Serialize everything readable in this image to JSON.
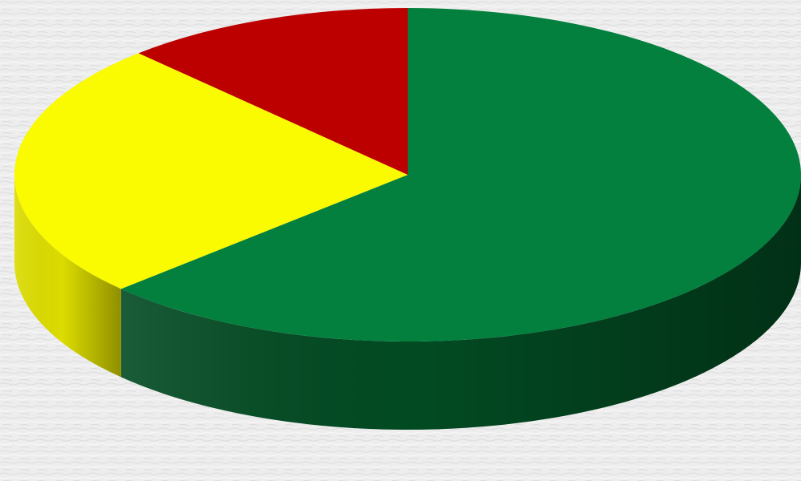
{
  "chart_data": {
    "type": "pie",
    "style": "3d",
    "start_angle": "12 o'clock",
    "direction": "clockwise",
    "title": "",
    "legend": "none",
    "data_labels": "none",
    "slices": [
      {
        "value": 63,
        "color": "#03803E",
        "side_color": "#024A22"
      },
      {
        "value": 25,
        "color": "#FAFA00",
        "side_color": "#DCDC00"
      },
      {
        "value": 12,
        "color": "#BC0000",
        "side_color": "#7A0000"
      }
    ]
  }
}
